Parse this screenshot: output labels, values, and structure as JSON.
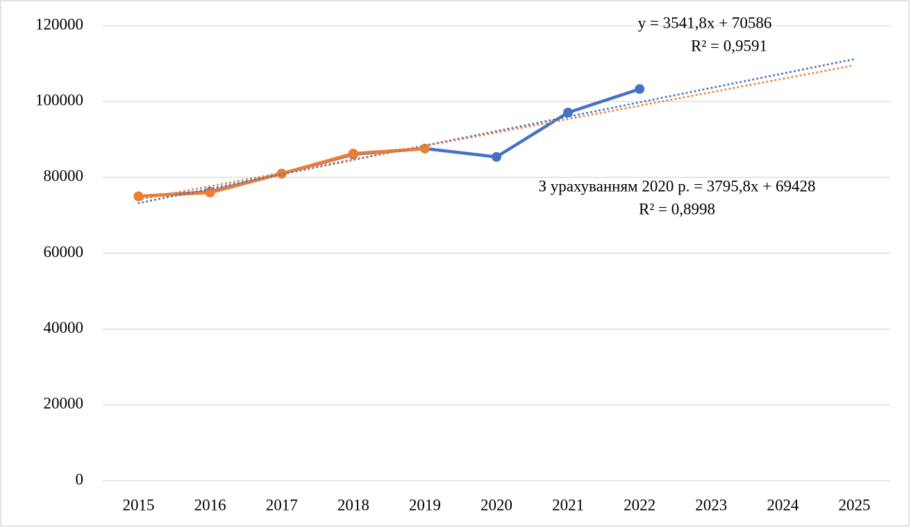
{
  "chart_data": {
    "type": "line",
    "categories": [
      "2015",
      "2016",
      "2017",
      "2018",
      "2019",
      "2020",
      "2021",
      "2022",
      "2023",
      "2024",
      "2025"
    ],
    "series": [
      {
        "color": "#4472c4",
        "values": [
          75000,
          76200,
          81000,
          86100,
          87600,
          85400,
          97100,
          103300,
          null,
          null,
          null
        ]
      },
      {
        "color": "#ed7d31",
        "values": [
          75000,
          76000,
          81000,
          86300,
          87600,
          null,
          null,
          null,
          null,
          null,
          null
        ]
      }
    ],
    "trendlines": [
      {
        "color": "#4472c4",
        "slope": 3795.8,
        "intercept": 69428,
        "equation": "З урахуванням 2020 р.  = 3795,8x + 69428",
        "r2_label": "R² = 0,8998"
      },
      {
        "color": "#ed7d31",
        "slope": 3541.8,
        "intercept": 70586,
        "equation": "y = 3541,8x + 70586",
        "r2_label": "R² = 0,9591"
      }
    ],
    "ylim": [
      0,
      120000
    ],
    "yticks": [
      0,
      20000,
      40000,
      60000,
      80000,
      100000,
      120000
    ],
    "grid": true
  }
}
